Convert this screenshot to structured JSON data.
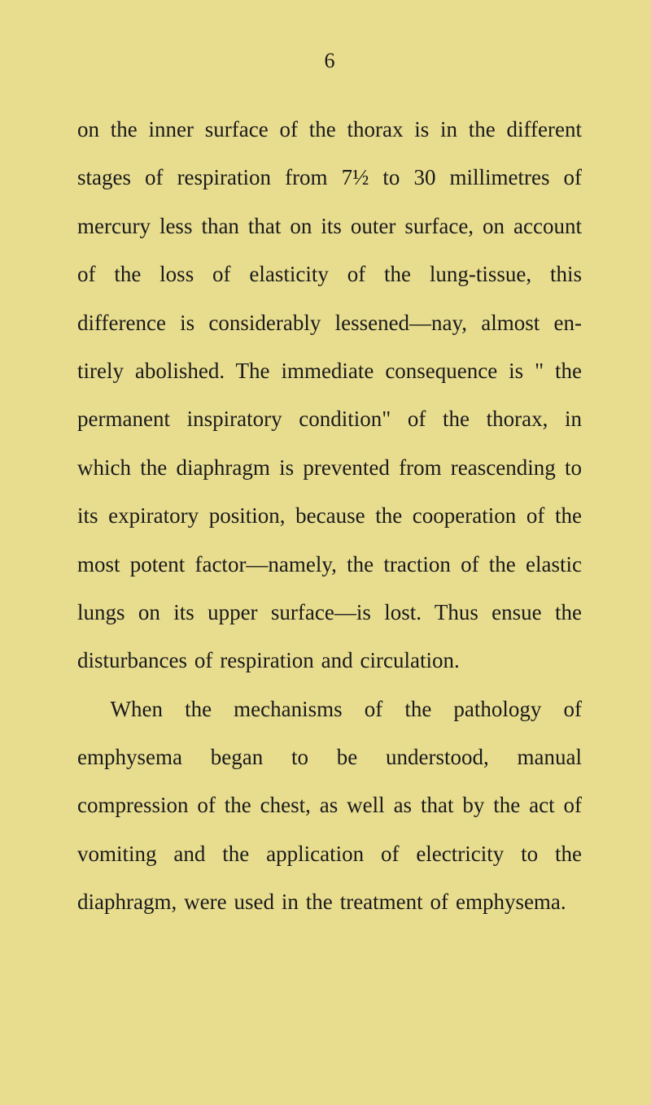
{
  "page": {
    "number": "6",
    "paragraph1": "on the inner surface of the thorax is in the different stages of respiration from 7½ to 30 millimetres of mercury less than that on its outer surface, on account of the loss of elasticity of the lung-tissue, this difference is considerably lessened—nay, almost en­tirely abolished. The immediate conse­quence is \" the permanent inspiratory condition\" of the thorax, in which the diaphragm is prevented from reascending to its expiratory position, because the co­operation of the most potent factor—namely, the traction of the elastic lungs on its upper surface—is lost. Thus ensue the disturbances of respiration and circulation.",
    "paragraph2": "When the mechanisms of the pathology of emphysema began to be understood, manual compression of the chest, as well as that by the act of vomiting and the application of electricity to the diaphragm, were used in the treatment of emphysema."
  },
  "colors": {
    "background": "#e8dd8f",
    "text": "#1a1a1a"
  },
  "typography": {
    "body_fontsize": 27,
    "line_height": 2.2,
    "font_family": "Georgia, Times New Roman, serif"
  }
}
